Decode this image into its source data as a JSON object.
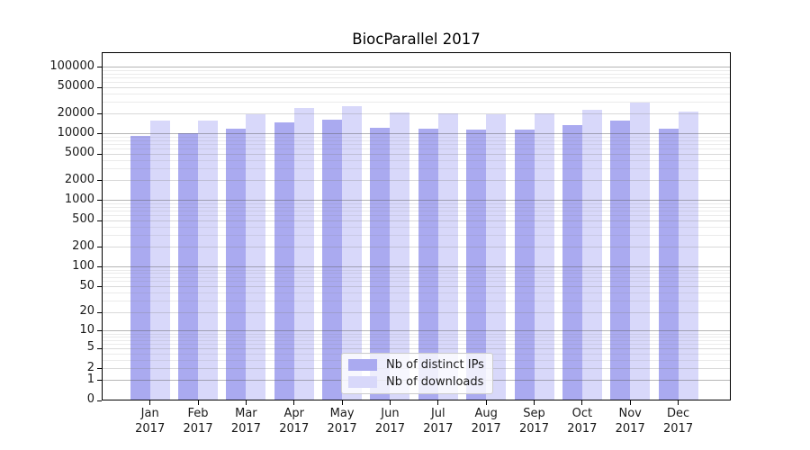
{
  "title": "BiocParallel 2017",
  "chart_data": {
    "type": "bar",
    "title": "BiocParallel 2017",
    "categories": [
      "Jan 2017",
      "Feb 2017",
      "Mar 2017",
      "Apr 2017",
      "May 2017",
      "Jun 2017",
      "Jul 2017",
      "Aug 2017",
      "Sep 2017",
      "Oct 2017",
      "Nov 2017",
      "Dec 2017"
    ],
    "series": [
      {
        "name": "Nb of distinct IPs",
        "color": "#aaaaf0",
        "values": [
          9500,
          10200,
          11900,
          15100,
          16300,
          12600,
          12200,
          11600,
          11800,
          13700,
          15800,
          12100
        ]
      },
      {
        "name": "Nb of downloads",
        "color": "#d8d8fa",
        "values": [
          16000,
          15900,
          19600,
          24700,
          26500,
          21100,
          20700,
          20000,
          20300,
          23000,
          29500,
          21500
        ]
      }
    ],
    "xlabel": "",
    "ylabel": "",
    "y_scale": "log1p",
    "y_ticks": [
      100000,
      50000,
      20000,
      10000,
      5000,
      2000,
      1000,
      500,
      200,
      100,
      50,
      20,
      10,
      5,
      2,
      1,
      0
    ],
    "ylim": [
      0,
      160000
    ],
    "grid": true,
    "legend_position": "lower-center-inside"
  }
}
